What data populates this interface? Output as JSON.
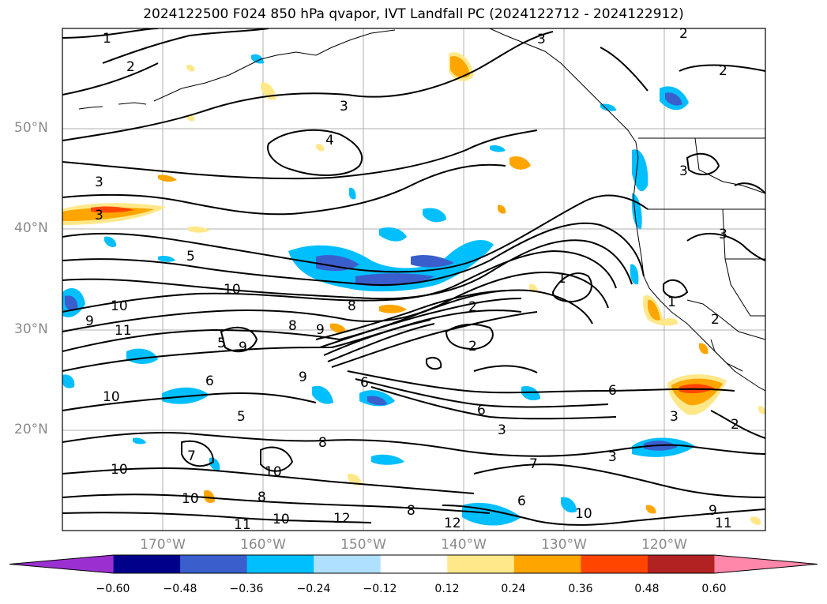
{
  "title": "2024122500 F024 850 hPa qvapor, IVT Landfall PC (2024122712 - 2024122912)",
  "lat_labels": [
    "50°N",
    "40°N",
    "30°N",
    "20°N"
  ],
  "lon_labels": [
    "170°W",
    "160°W",
    "150°W",
    "140°W",
    "130°W",
    "120°W"
  ],
  "colorbar": {
    "ticks": [
      "−0.60",
      "−0.48",
      "−0.36",
      "−0.24",
      "−0.12",
      "0.12",
      "0.24",
      "0.36",
      "0.48",
      "0.60"
    ],
    "colors": [
      "#9b30d0",
      "#00008b",
      "#3a5fcd",
      "#00bfff",
      "#b0e0ff",
      "#ffffff",
      "#ffe88a",
      "#ffa500",
      "#ff4500",
      "#b22222",
      "#ff88aa"
    ]
  },
  "contour_labels": [
    "1",
    "2",
    "3",
    "3",
    "3",
    "2",
    "4",
    "3",
    "5",
    "10",
    "9",
    "11",
    "10",
    "8",
    "9",
    "8",
    "1",
    "2",
    "2",
    "5",
    "6",
    "9",
    "10",
    "7",
    "5",
    "6",
    "9",
    "8",
    "6",
    "2",
    "6",
    "3",
    "3",
    "7",
    "10",
    "8",
    "10",
    "10",
    "11",
    "10",
    "12",
    "8",
    "12",
    "10",
    "9",
    "11",
    "6",
    "1",
    "3",
    "2",
    "3",
    "2",
    "3"
  ]
}
